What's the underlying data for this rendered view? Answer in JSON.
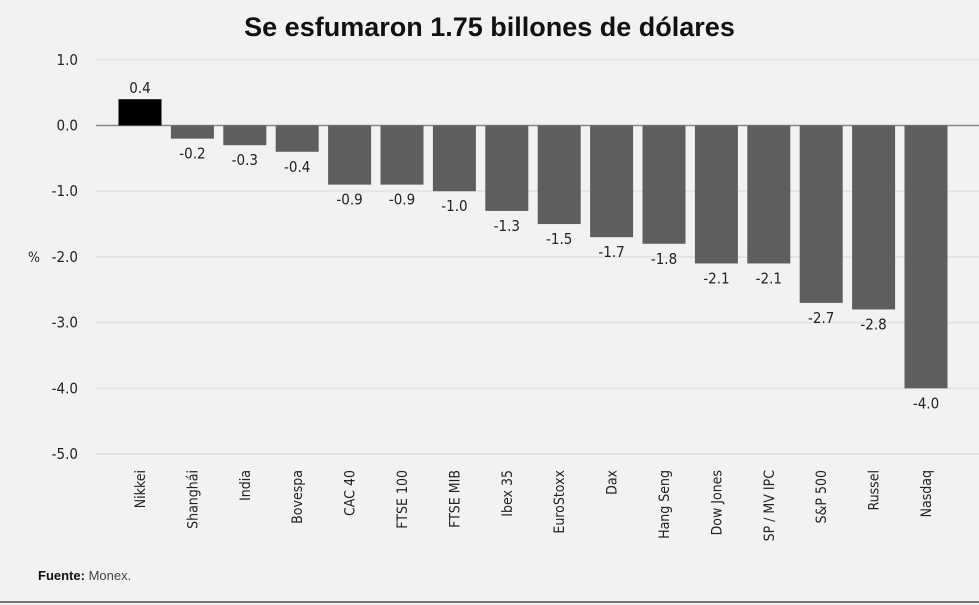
{
  "chart_data": {
    "type": "bar",
    "title": "Se esfumaron 1.75 billones de dólares",
    "ylabel": "%",
    "ylim": [
      -5.0,
      1.0
    ],
    "yticks": [
      "1.0",
      "0.0",
      "-1.0",
      "-2.0",
      "-3.0",
      "-4.0",
      "-5.0"
    ],
    "grid": true,
    "categories": [
      "Nikkei",
      "Shanghái",
      "India",
      "Bovespa",
      "CAC 40",
      "FTSE 100",
      "FTSE MIB",
      "Ibex 35",
      "EuroStoxx",
      "Dax",
      "Hang Seng",
      "Dow Jones",
      "SP / MV IPC",
      "S&P 500",
      "Russel",
      "Nasdaq"
    ],
    "values": [
      0.4,
      -0.2,
      -0.3,
      -0.4,
      -0.9,
      -0.9,
      -1.0,
      -1.3,
      -1.5,
      -1.7,
      -1.8,
      -2.1,
      -2.1,
      -2.7,
      -2.8,
      -4.0
    ],
    "data_labels": [
      "0.4",
      "-0.2",
      "-0.3",
      "-0.4",
      "-0.9",
      "-0.9",
      "-1.0",
      "-1.3",
      "-1.5",
      "-1.7",
      "-1.8",
      "-2.1",
      "-2.1",
      "-2.7",
      "-2.8",
      "-4.0"
    ],
    "colors": {
      "positive": "#000000",
      "negative": "#5e5e5e",
      "background": "#f2f2f2"
    }
  },
  "source": {
    "label": "Fuente:",
    "value": "Monex."
  }
}
